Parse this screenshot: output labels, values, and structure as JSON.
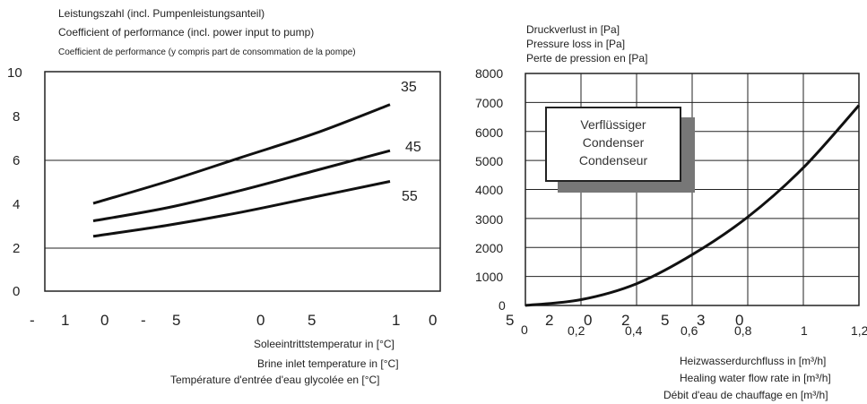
{
  "left_chart": {
    "titles": [
      "Leistungszahl (incl. Pumpenleistungsanteil)",
      "Coefficient of performance (incl. power input to pump)",
      "Coefficient de performance (y compris part de consommation de la pompe)"
    ],
    "y_ticks": [
      "10",
      "8",
      "6",
      "4",
      "2",
      "0"
    ],
    "x_ticks": [
      "-",
      "1",
      "0",
      "-",
      "5",
      "0",
      "5",
      "1",
      "0"
    ],
    "x_axis_labels": [
      "Soleeintrittstemperatur in [°C]",
      "Brine inlet temperature in [°C]",
      "Température d'entrée d'eau glycolée en [°C]"
    ],
    "curve_labels": [
      "35",
      "45",
      "55"
    ]
  },
  "right_chart": {
    "titles": [
      "Druckverlust in [Pa]",
      "Pressure loss in [Pa]",
      "Perte de pression en [Pa]"
    ],
    "y_ticks": [
      "8000",
      "7000",
      "6000",
      "5000",
      "4000",
      "3000",
      "2000",
      "1000",
      "0"
    ],
    "x_ticks": [
      "0",
      "0,2",
      "0,4",
      "0,6",
      "0,8",
      "1",
      "1,2"
    ],
    "overlay_digits": [
      "5",
      "2",
      "0",
      "2",
      "5",
      "3",
      "0"
    ],
    "x_axis_labels": [
      "Heizwasserdurchfluss in [m³/h]",
      "Healing water flow rate in [m³/h]",
      "Débit d'eau de chauffage en [m³/h]"
    ],
    "legend_box": [
      "Verflüssiger",
      "Condenser",
      "Condenseur"
    ]
  },
  "chart_data": [
    {
      "type": "line",
      "ylim": [
        0,
        10
      ],
      "x": [
        -10,
        -5,
        0,
        5,
        10
      ],
      "series": [
        {
          "name": "35",
          "values": [
            4.0,
            5.0,
            6.1,
            7.2,
            8.5
          ]
        },
        {
          "name": "45",
          "values": [
            3.2,
            3.8,
            4.6,
            5.5,
            6.4
          ]
        },
        {
          "name": "55",
          "values": [
            2.5,
            3.0,
            3.6,
            4.3,
            5.0
          ]
        }
      ],
      "grid": "horizontal"
    },
    {
      "type": "line",
      "xlim": [
        0,
        1.2
      ],
      "ylim": [
        0,
        8000
      ],
      "x": [
        0,
        0.2,
        0.4,
        0.6,
        0.8,
        1.0,
        1.2
      ],
      "series": [
        {
          "values": [
            0,
            200,
            750,
            1750,
            3050,
            4750,
            6900
          ]
        }
      ],
      "grid": "both"
    }
  ]
}
